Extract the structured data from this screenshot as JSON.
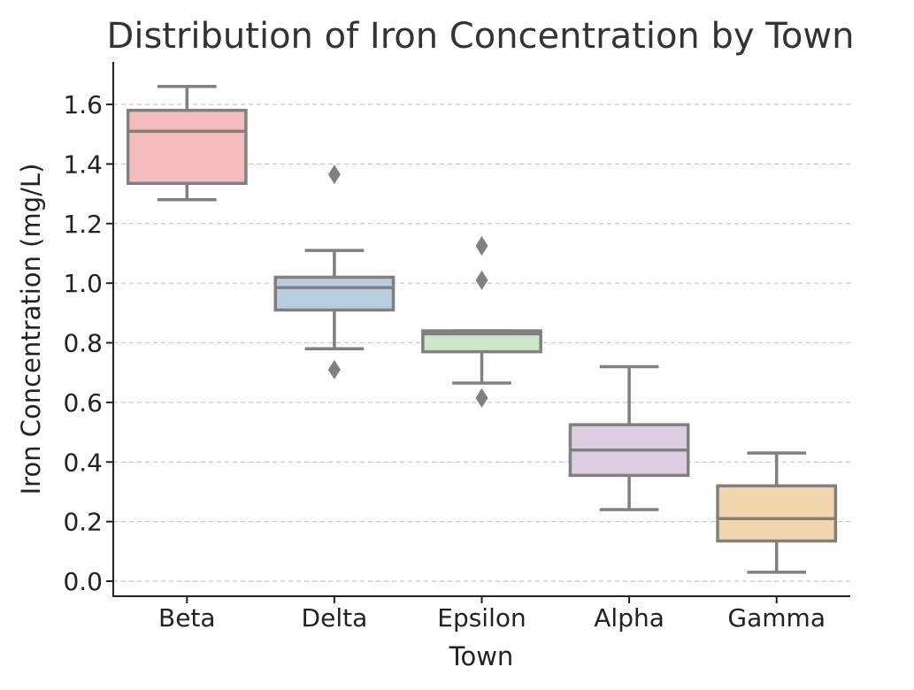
{
  "chart_data": {
    "type": "box",
    "title": "Distribution of Iron Concentration by Town",
    "xlabel": "Town",
    "ylabel": "Iron Concentration (mg/L)",
    "ylim": [
      -0.05,
      1.74
    ],
    "yticks": [
      "0.0",
      "0.2",
      "0.4",
      "0.6",
      "0.8",
      "1.0",
      "1.2",
      "1.4",
      "1.6"
    ],
    "grid": "horizontal-dashed",
    "categories": [
      "Beta",
      "Delta",
      "Epsilon",
      "Alpha",
      "Gamma"
    ],
    "boxes": [
      {
        "category": "Beta",
        "whisker_low": 1.28,
        "q1": 1.335,
        "median": 1.51,
        "q3": 1.58,
        "whisker_high": 1.66,
        "outliers": [],
        "color": "#f4bcbc"
      },
      {
        "category": "Delta",
        "whisker_low": 0.78,
        "q1": 0.91,
        "median": 0.985,
        "q3": 1.02,
        "whisker_high": 1.11,
        "outliers": [
          1.365,
          0.71
        ],
        "color": "#b9cde0"
      },
      {
        "category": "Epsilon",
        "whisker_low": 0.665,
        "q1": 0.77,
        "median": 0.83,
        "q3": 0.84,
        "whisker_high": 0.84,
        "outliers": [
          1.125,
          1.01,
          0.615
        ],
        "color": "#cfe6c8"
      },
      {
        "category": "Alpha",
        "whisker_low": 0.24,
        "q1": 0.355,
        "median": 0.44,
        "q3": 0.525,
        "whisker_high": 0.72,
        "outliers": [],
        "color": "#dccde1"
      },
      {
        "category": "Gamma",
        "whisker_low": 0.03,
        "q1": 0.135,
        "median": 0.21,
        "q3": 0.32,
        "whisker_high": 0.43,
        "outliers": [],
        "color": "#f4d6ad"
      }
    ],
    "stroke_color": "#808080"
  }
}
